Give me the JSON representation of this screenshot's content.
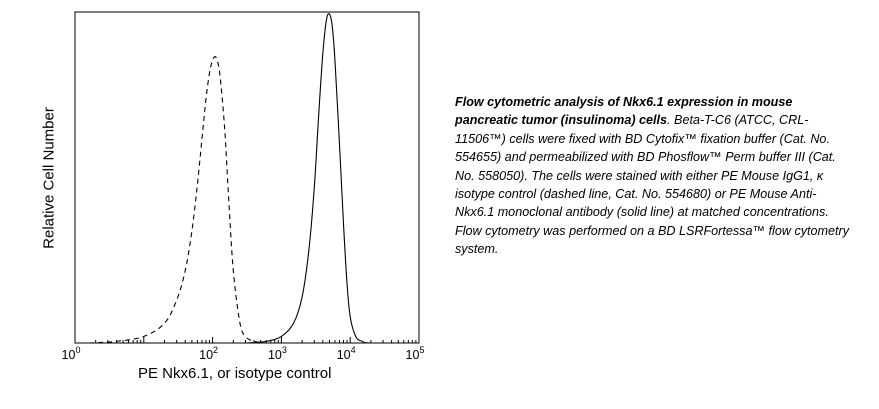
{
  "chart_data": {
    "type": "line",
    "xscale": "log",
    "xlim": [
      1,
      100000
    ],
    "ylim": [
      0,
      1
    ],
    "ylabel": "Relative Cell Number",
    "xlabel": "PE Nkx6.1, or isotype control",
    "x_ticks": [
      {
        "base": "10",
        "exp": "0"
      },
      {
        "base": "10",
        "exp": "2"
      },
      {
        "base": "10",
        "exp": "3"
      },
      {
        "base": "10",
        "exp": "4"
      },
      {
        "base": "10",
        "exp": "5"
      }
    ],
    "series": [
      {
        "style": "dashed",
        "x": [
          1.6,
          4,
          10,
          20,
          30,
          40,
          50,
          60,
          70,
          80,
          90,
          100,
          110,
          120,
          130,
          150,
          170,
          200,
          250,
          300,
          400,
          600,
          1000,
          100000
        ],
        "y": [
          0,
          0.005,
          0.02,
          0.06,
          0.13,
          0.22,
          0.34,
          0.48,
          0.62,
          0.74,
          0.82,
          0.86,
          0.87,
          0.85,
          0.8,
          0.65,
          0.45,
          0.22,
          0.06,
          0.02,
          0.005,
          0,
          0,
          0
        ]
      },
      {
        "style": "solid",
        "x": [
          1,
          100,
          300,
          600,
          1000,
          1500,
          2000,
          2500,
          3000,
          3500,
          4000,
          4500,
          5000,
          5500,
          6000,
          7000,
          8000,
          9000,
          10000,
          12000,
          15000,
          20000,
          100000
        ],
        "y": [
          0,
          0,
          0,
          0.005,
          0.02,
          0.06,
          0.14,
          0.28,
          0.47,
          0.7,
          0.88,
          0.98,
          1.0,
          0.96,
          0.86,
          0.6,
          0.36,
          0.18,
          0.08,
          0.02,
          0.005,
          0,
          0
        ]
      }
    ]
  },
  "caption": {
    "bold": "Flow cytometric analysis of Nkx6.1 expression in mouse pancreatic tumor (insulinoma) cells",
    "body": ". Beta-T-C6 (ATCC, CRL-11506™) cells were fixed with BD Cytofix™ fixation buffer (Cat. No. 554655) and permeabilized with BD Phosflow™ Perm buffer III (Cat. No. 558050). The cells were stained with either PE Mouse IgG1, κ isotype control (dashed line, Cat. No. 554680) or PE Mouse Anti-Nkx6.1 monoclonal antibody (solid line) at matched concentrations. Flow cytometry was performed on a BD LSRFortessa™ flow cytometry system."
  }
}
